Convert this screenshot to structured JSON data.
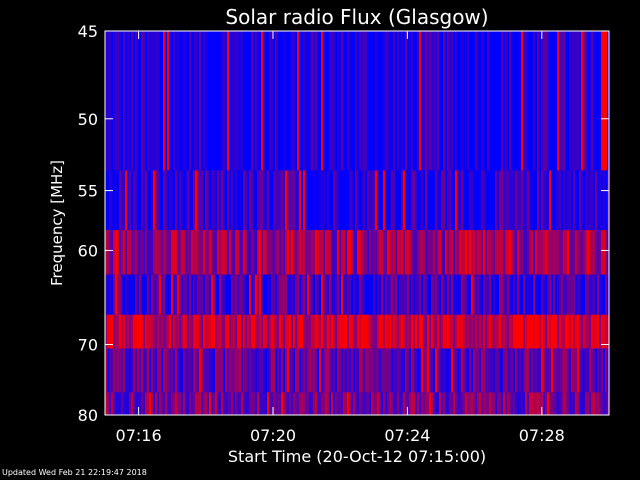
{
  "chart_data": {
    "type": "heatmap",
    "title": "Solar radio Flux (Glasgow)",
    "xlabel": "Start Time (20-Oct-12 07:15:00)",
    "ylabel": "Frequency [MHz]",
    "x_ticks": [
      "07:16",
      "07:20",
      "07:24",
      "07:28"
    ],
    "x_tick_minutes": [
      1,
      5,
      9,
      13
    ],
    "xlim_minutes": [
      0,
      15
    ],
    "y_ticks": [
      45,
      50,
      55,
      60,
      70,
      80
    ],
    "ylim_mhz": [
      45,
      80
    ],
    "y_scale": "reciprocal",
    "colormap": [
      "#0000ff",
      "#ff0000"
    ],
    "frequency_bands": [
      {
        "from_mhz": 45,
        "to_mhz": 53.5,
        "level": 0.05
      },
      {
        "from_mhz": 53.5,
        "to_mhz": 58.2,
        "level": 0.12
      },
      {
        "from_mhz": 58.2,
        "to_mhz": 62.3,
        "level": 0.55
      },
      {
        "from_mhz": 62.3,
        "to_mhz": 66.5,
        "level": 0.25
      },
      {
        "from_mhz": 66.5,
        "to_mhz": 70.5,
        "level": 0.75
      },
      {
        "from_mhz": 70.5,
        "to_mhz": 76.5,
        "level": 0.35
      },
      {
        "from_mhz": 76.5,
        "to_mhz": 80,
        "level": 0.45
      }
    ]
  },
  "footer": "Updated Wed Feb 21 22:19:47 2018"
}
